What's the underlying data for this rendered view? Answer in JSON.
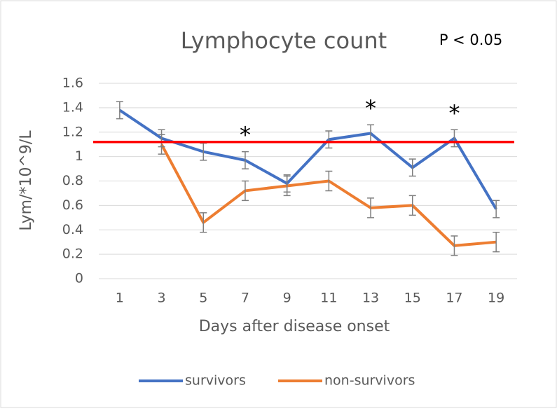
{
  "chart_data": {
    "type": "line",
    "title": "Lymphocyte count",
    "subtitle": "P < 0.05",
    "xlabel": "Days after disease onset",
    "ylabel": "Lym/*10^9/L",
    "categories": [
      "1",
      "3",
      "5",
      "7",
      "9",
      "11",
      "13",
      "15",
      "17",
      "19"
    ],
    "series": [
      {
        "name": "survivors",
        "color": "#4472c4",
        "values": [
          1.38,
          1.15,
          1.04,
          0.97,
          0.78,
          1.14,
          1.19,
          0.91,
          1.15,
          0.57
        ],
        "errors": [
          0.07,
          0.07,
          0.07,
          0.07,
          0.07,
          0.07,
          0.07,
          0.07,
          0.07,
          0.07
        ]
      },
      {
        "name": "non-survivors",
        "color": "#ed7d31",
        "values": [
          null,
          1.1,
          0.46,
          0.72,
          0.76,
          0.8,
          0.58,
          0.6,
          0.27,
          0.3
        ],
        "errors": [
          null,
          0.08,
          0.08,
          0.08,
          0.08,
          0.08,
          0.08,
          0.08,
          0.08,
          0.08
        ]
      }
    ],
    "reference_line": {
      "value": 1.12,
      "color": "#ff0000"
    },
    "annotations": [
      {
        "text": "*",
        "at": "7"
      },
      {
        "text": "*",
        "at": "13"
      },
      {
        "text": "*",
        "at": "17"
      }
    ],
    "ylim": [
      0,
      1.6
    ],
    "yticks": [
      0,
      0.2,
      0.4,
      0.6,
      0.8,
      1,
      1.2,
      1.4,
      1.6
    ],
    "grid": true,
    "legend": "bottom"
  }
}
